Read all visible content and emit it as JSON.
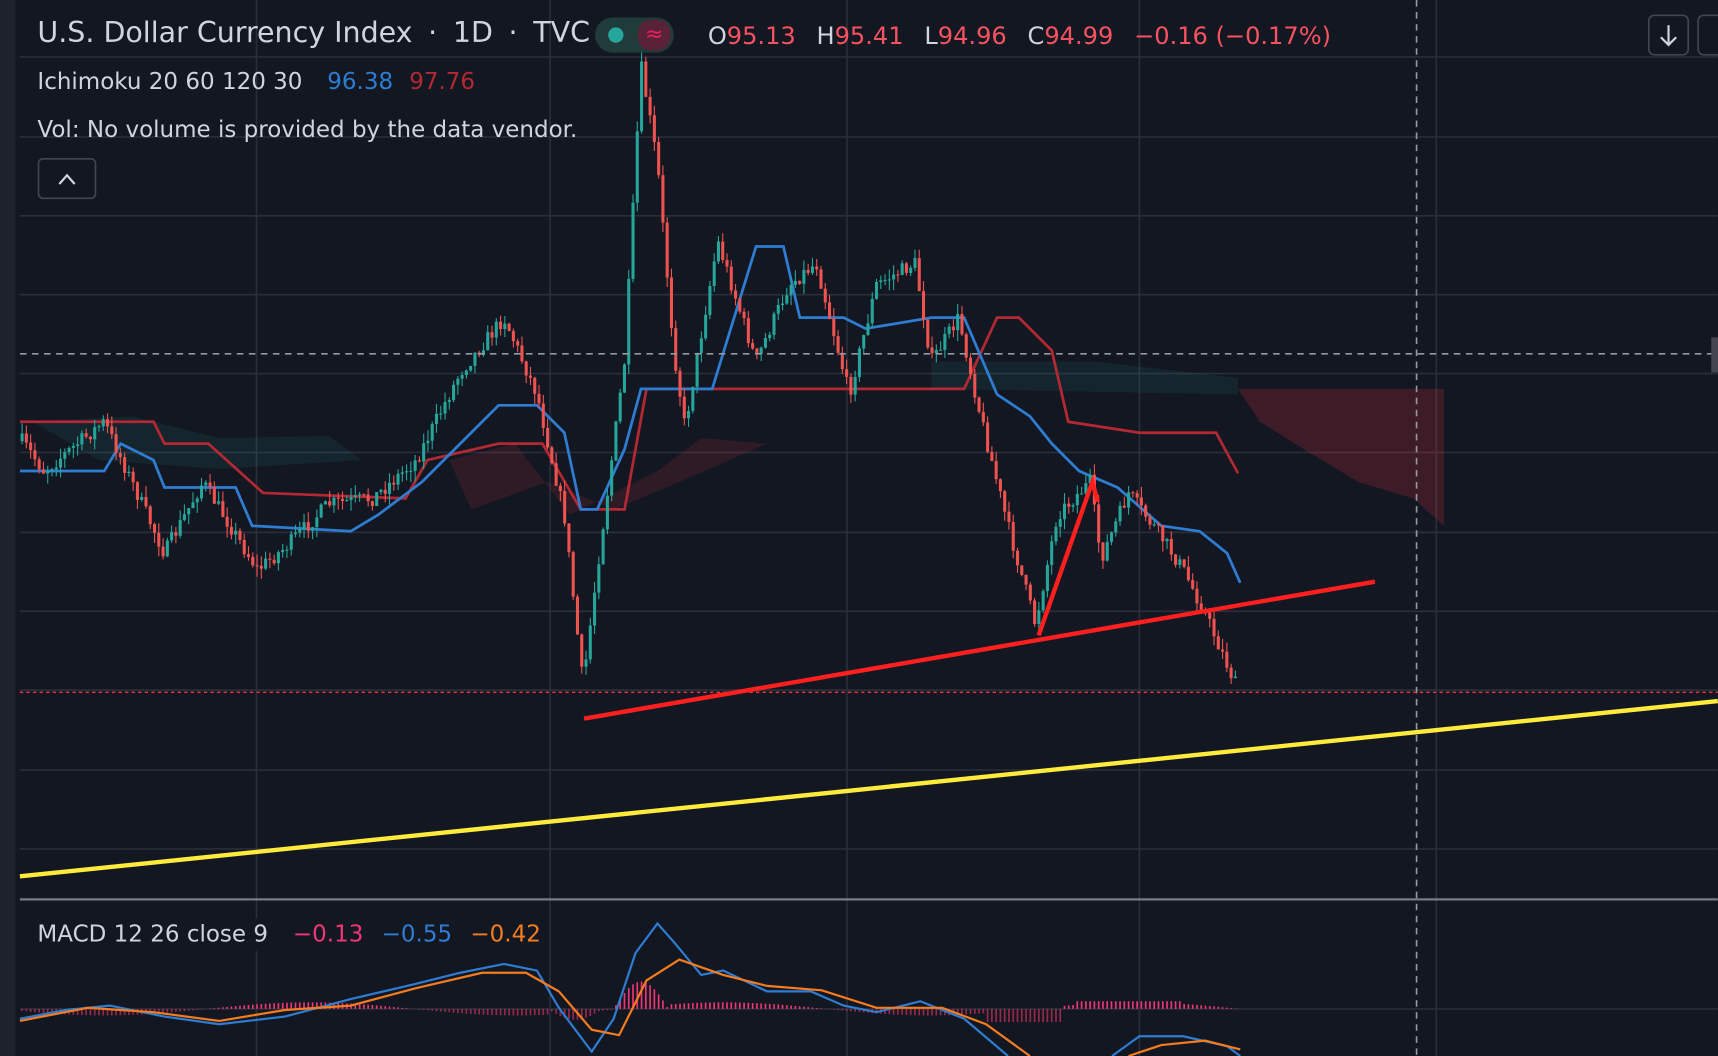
{
  "header": {
    "symbol": "U.S. Dollar Currency Index",
    "separator": "·",
    "interval": "1D",
    "exchange": "TVC",
    "open_label": "O",
    "open": "95.13",
    "high_label": "H",
    "high": "95.41",
    "low_label": "L",
    "low": "94.96",
    "close_label": "C",
    "close": "94.99",
    "change": "−0.16 (−0.17%)"
  },
  "indicators": {
    "ichimoku": {
      "label": "Ichimoku 20 60 120 30",
      "value1": "96.38",
      "value2": "97.76"
    },
    "volume": {
      "label": "Vol: No volume is provided by the data vendor."
    }
  },
  "macd": {
    "label": "MACD 12 26 close 9",
    "value1": "−0.13",
    "value2": "−0.55",
    "value3": "−0.42"
  }
}
